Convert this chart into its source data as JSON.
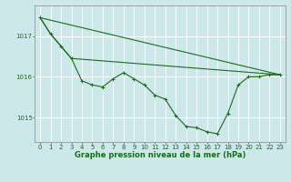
{
  "bg_color": "#cce8ea",
  "grid_color": "#ffffff",
  "line_color": "#1a6b1a",
  "xlabel": "Graphe pression niveau de la mer (hPa)",
  "xlabel_fontsize": 6.0,
  "tick_fontsize": 5.0,
  "ylim": [
    1014.4,
    1017.75
  ],
  "yticks": [
    1015,
    1016,
    1017
  ],
  "xlim": [
    -0.5,
    23.5
  ],
  "xticks": [
    0,
    1,
    2,
    3,
    4,
    5,
    6,
    7,
    8,
    9,
    10,
    11,
    12,
    13,
    14,
    15,
    16,
    17,
    18,
    19,
    20,
    21,
    22,
    23
  ],
  "series1_x": [
    0,
    1,
    2,
    3,
    4,
    5,
    6,
    7,
    8,
    9,
    10,
    11,
    12,
    13,
    14,
    15,
    16,
    17,
    18,
    19,
    20,
    21,
    22,
    23
  ],
  "series1_y": [
    1017.45,
    1017.05,
    1016.75,
    1016.45,
    1015.9,
    1015.8,
    1015.75,
    1015.95,
    1016.1,
    1015.95,
    1015.8,
    1015.55,
    1015.45,
    1015.05,
    1014.78,
    1014.75,
    1014.65,
    1014.6,
    1015.1,
    1015.8,
    1016.0,
    1016.0,
    1016.05,
    1016.05
  ],
  "series2_x": [
    0,
    1,
    2,
    3,
    23
  ],
  "series2_y": [
    1017.45,
    1017.05,
    1016.75,
    1016.45,
    1016.05
  ],
  "series3_x": [
    0,
    23
  ],
  "series3_y": [
    1017.45,
    1016.05
  ],
  "spine_color": "#888888",
  "figwidth": 3.2,
  "figheight": 2.0,
  "dpi": 100
}
